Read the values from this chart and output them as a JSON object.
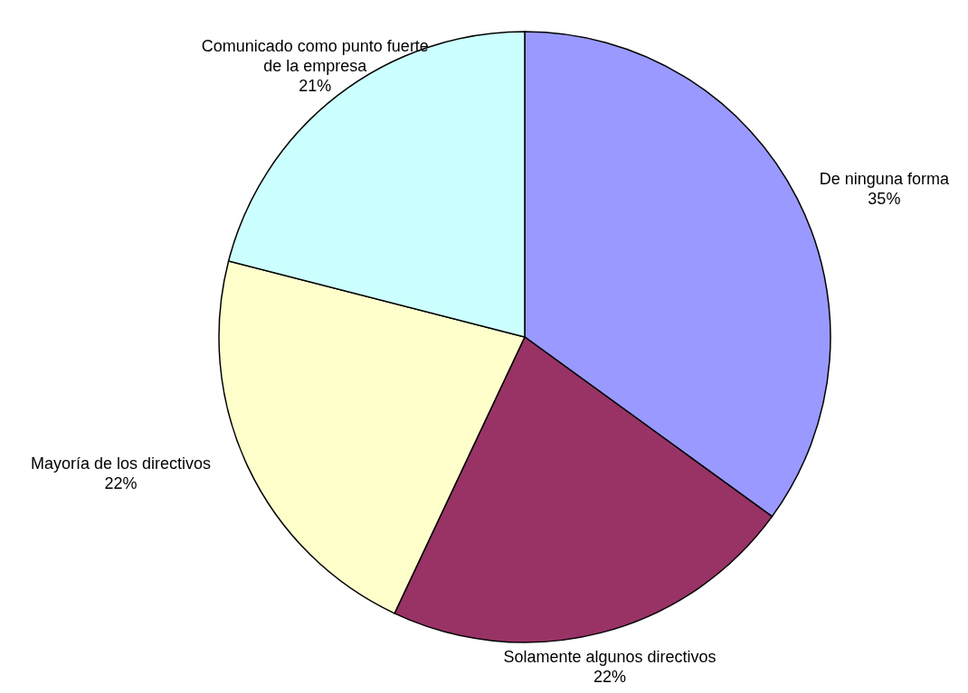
{
  "chart_data": {
    "type": "pie",
    "categories": [
      "De ninguna forma",
      "Solamente algunos directivos",
      "Mayoría de los directivos",
      "Comunicado como punto fuerte de la empresa"
    ],
    "values": [
      35,
      22,
      22,
      21
    ],
    "value_labels": [
      "35%",
      "22%",
      "22%",
      "21%"
    ],
    "colors": [
      "#9999ff",
      "#993366",
      "#ffffcc",
      "#ccffff"
    ],
    "legend": false
  }
}
